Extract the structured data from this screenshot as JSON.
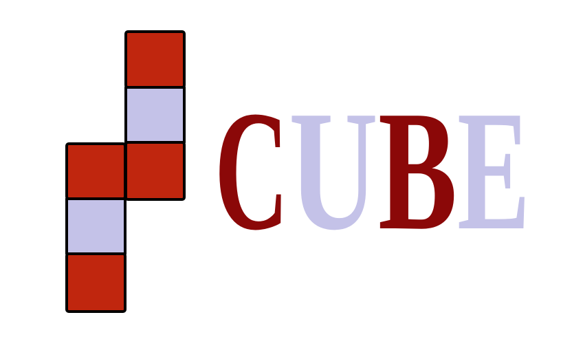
{
  "logo": {
    "letters": [
      "C",
      "U",
      "B",
      "E"
    ]
  }
}
